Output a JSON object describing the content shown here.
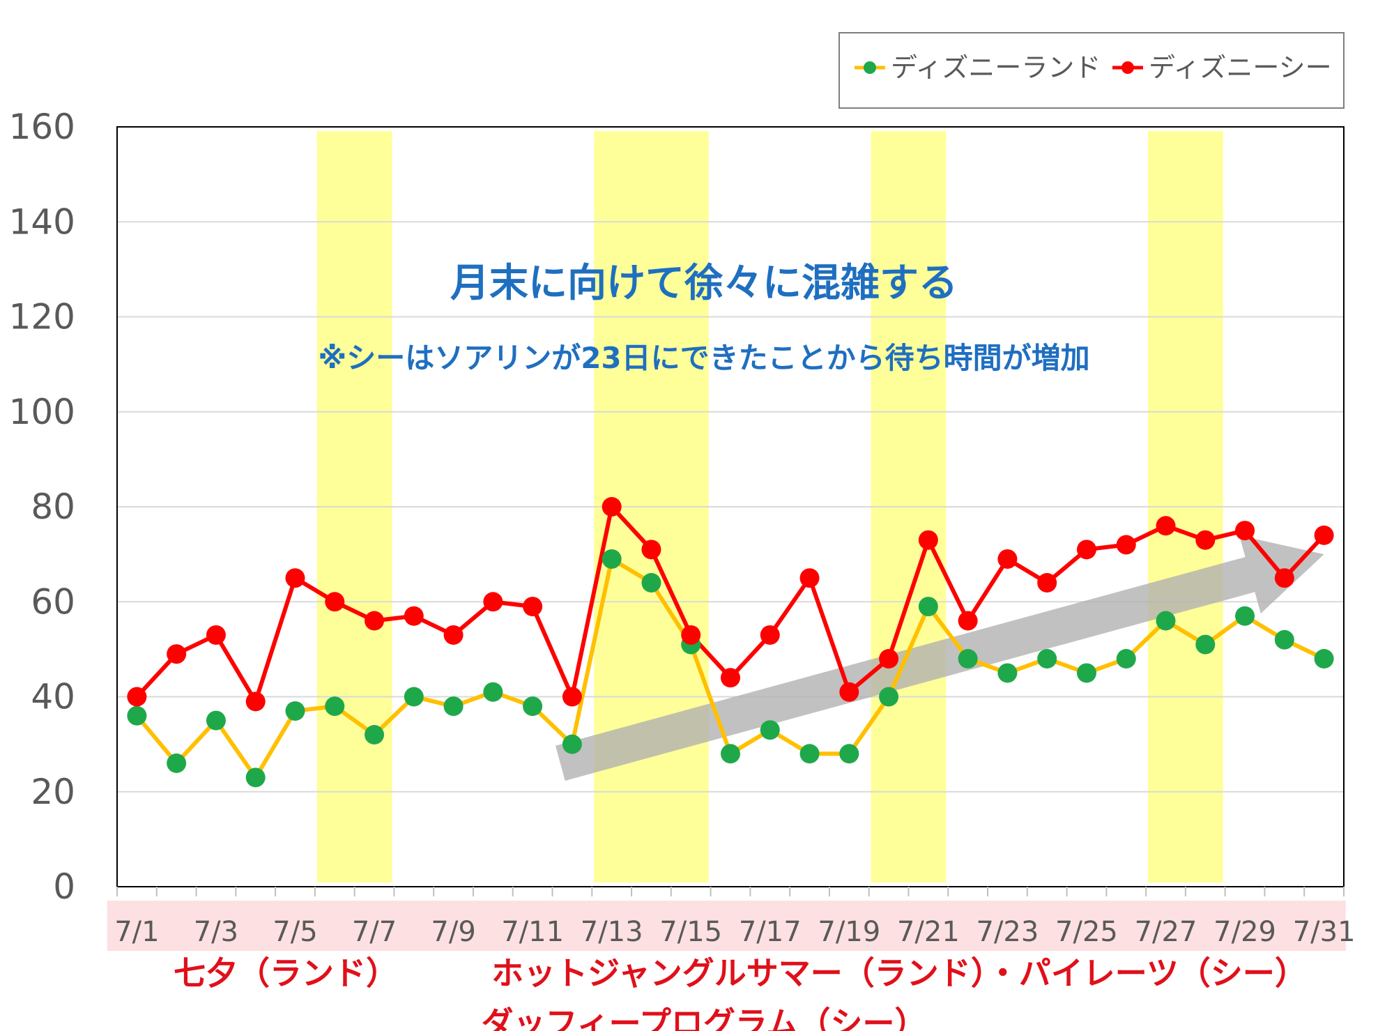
{
  "chart_data": {
    "type": "line",
    "categories": [
      "7/1",
      "7/2",
      "7/3",
      "7/4",
      "7/5",
      "7/6",
      "7/7",
      "7/8",
      "7/9",
      "7/10",
      "7/11",
      "7/12",
      "7/13",
      "7/14",
      "7/15",
      "7/16",
      "7/17",
      "7/18",
      "7/19",
      "7/20",
      "7/21",
      "7/22",
      "7/23",
      "7/24",
      "7/25",
      "7/26",
      "7/27",
      "7/28",
      "7/29",
      "7/30",
      "7/31"
    ],
    "tick_labels": [
      "7/1",
      "7/3",
      "7/5",
      "7/7",
      "7/9",
      "7/11",
      "7/13",
      "7/15",
      "7/17",
      "7/19",
      "7/21",
      "7/23",
      "7/25",
      "7/27",
      "7/29",
      "7/31"
    ],
    "series": [
      {
        "name": "ディズニーランド",
        "line_color": "#ffc000",
        "marker_color": "#1fa84a",
        "values": [
          36,
          26,
          35,
          23,
          37,
          38,
          32,
          40,
          38,
          41,
          38,
          30,
          69,
          64,
          51,
          28,
          33,
          28,
          28,
          40,
          59,
          48,
          45,
          48,
          45,
          48,
          56,
          51,
          57,
          52,
          48
        ]
      },
      {
        "name": "ディズニーシー",
        "line_color": "#ff0000",
        "marker_color": "#ff0000",
        "values": [
          40,
          49,
          53,
          39,
          65,
          60,
          56,
          57,
          53,
          60,
          59,
          40,
          80,
          71,
          53,
          44,
          53,
          65,
          41,
          48,
          73,
          56,
          69,
          64,
          71,
          72,
          76,
          73,
          75,
          65,
          74
        ]
      }
    ],
    "ylim": [
      0,
      160
    ],
    "yticks": [
      0,
      20,
      40,
      60,
      80,
      100,
      120,
      140,
      160
    ],
    "grid": true,
    "legend_position": "top-right",
    "highlight_ranges": [
      [
        "7/6",
        "7/7"
      ],
      [
        "7/13",
        "7/15"
      ],
      [
        "7/20",
        "7/21"
      ],
      [
        "7/27",
        "7/28"
      ]
    ],
    "highlight_color": "#ffff99",
    "trend_arrow": {
      "from": [
        "7/12",
        26
      ],
      "to": [
        "7/31",
        70
      ],
      "color": "#b0b0b0"
    },
    "annotations": {
      "main": "月末に向けて徐々に混雑する",
      "sub": "※シーはソアリンが23日にできたことから待ち時間が増加"
    },
    "events": [
      {
        "label": "七夕（ランド）",
        "range": [
          "7/1",
          "7/8"
        ]
      },
      {
        "label": "ホットジャングルサマー（ランド）・パイレーツ（シー）",
        "range": [
          "7/9",
          "7/31"
        ]
      },
      {
        "label": "ダッフィープログラム（シー）",
        "range": [
          "7/9",
          "7/31"
        ]
      }
    ],
    "event_band_color": "#fde0e2"
  }
}
